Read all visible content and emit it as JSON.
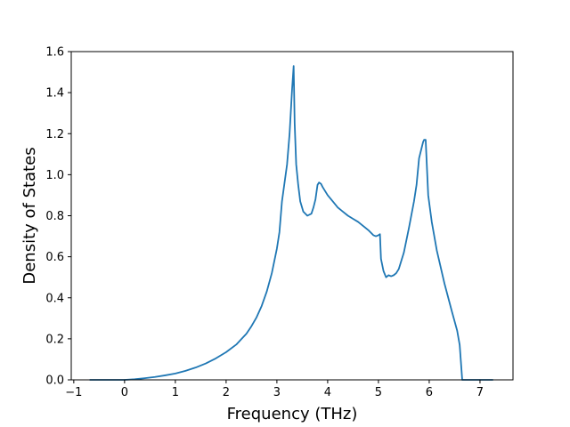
{
  "chart_data": {
    "type": "line",
    "title": "",
    "xlabel": "Frequency (THz)",
    "ylabel": "Density of States",
    "xlim": [
      -1.05,
      7.65
    ],
    "ylim": [
      0.0,
      1.6
    ],
    "xticks": [
      -1,
      0,
      1,
      2,
      3,
      4,
      5,
      6,
      7
    ],
    "yticks": [
      0.0,
      0.2,
      0.4,
      0.6,
      0.8,
      1.0,
      1.2,
      1.4,
      1.6
    ],
    "xtick_labels": [
      "−1",
      "0",
      "1",
      "2",
      "3",
      "4",
      "5",
      "6",
      "7"
    ],
    "ytick_labels": [
      "0.0",
      "0.2",
      "0.4",
      "0.6",
      "0.8",
      "1.0",
      "1.2",
      "1.4",
      "1.6"
    ],
    "grid": false,
    "line_color": "#1f77b4",
    "series": [
      {
        "x": [
          -0.68,
          -0.2,
          0.0,
          0.2,
          0.4,
          0.6,
          0.8,
          1.0,
          1.2,
          1.4,
          1.6,
          1.8,
          2.0,
          2.2,
          2.4,
          2.5,
          2.6,
          2.7,
          2.8,
          2.9,
          3.0,
          3.05,
          3.1,
          3.15,
          3.2,
          3.25,
          3.3,
          3.33,
          3.35,
          3.38,
          3.42,
          3.46,
          3.52,
          3.6,
          3.68,
          3.72,
          3.76,
          3.8,
          3.83,
          3.87,
          3.9,
          3.95,
          4.0,
          4.1,
          4.2,
          4.3,
          4.4,
          4.5,
          4.6,
          4.7,
          4.8,
          4.9,
          4.95,
          5.0,
          5.03,
          5.05,
          5.1,
          5.15,
          5.2,
          5.25,
          5.3,
          5.35,
          5.4,
          5.5,
          5.6,
          5.7,
          5.75,
          5.8,
          5.85,
          5.88,
          5.9,
          5.93,
          5.98,
          6.05,
          6.15,
          6.3,
          6.45,
          6.55,
          6.6,
          6.65,
          7.0,
          7.25
        ],
        "y": [
          0.0,
          0.0,
          0.0,
          0.003,
          0.008,
          0.014,
          0.022,
          0.031,
          0.044,
          0.06,
          0.08,
          0.105,
          0.135,
          0.172,
          0.225,
          0.262,
          0.305,
          0.36,
          0.43,
          0.52,
          0.64,
          0.72,
          0.87,
          0.96,
          1.05,
          1.2,
          1.42,
          1.53,
          1.25,
          1.05,
          0.95,
          0.87,
          0.82,
          0.8,
          0.81,
          0.84,
          0.88,
          0.95,
          0.962,
          0.955,
          0.94,
          0.92,
          0.9,
          0.87,
          0.84,
          0.82,
          0.8,
          0.785,
          0.77,
          0.75,
          0.73,
          0.705,
          0.7,
          0.705,
          0.71,
          0.59,
          0.53,
          0.5,
          0.51,
          0.505,
          0.51,
          0.52,
          0.54,
          0.62,
          0.74,
          0.87,
          0.95,
          1.08,
          1.13,
          1.16,
          1.17,
          1.17,
          0.9,
          0.77,
          0.63,
          0.47,
          0.33,
          0.24,
          0.17,
          0.0,
          0.0,
          0.0
        ]
      }
    ]
  }
}
